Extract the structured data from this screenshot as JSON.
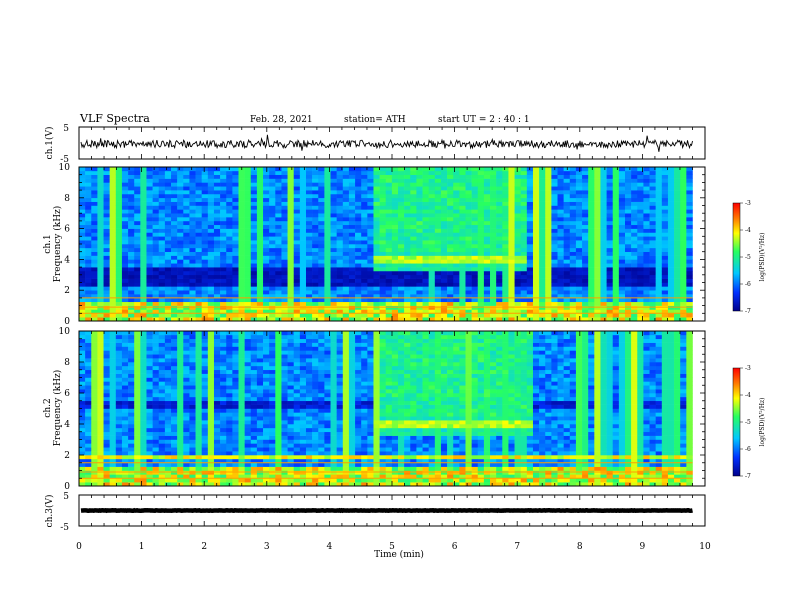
{
  "header": {
    "title": "VLF Spectra",
    "date": "Feb. 28, 2021",
    "station": "station= ATH",
    "start_ut": "start  UT  =   2  : 40 : 1"
  },
  "chart_data": {
    "type": "heatmap",
    "xlabel": "Time  (min)",
    "xlim": [
      0,
      10
    ],
    "xticks": [
      "0",
      "1",
      "2",
      "3",
      "4",
      "5",
      "6",
      "7",
      "8",
      "9",
      "10"
    ],
    "data_end_min": 9.8,
    "panels": [
      {
        "id": "ch1-waveform",
        "type": "line",
        "ylabel": "ch.1(V)",
        "ylim": [
          -5,
          5
        ],
        "yticks": [
          "5",
          "-5"
        ],
        "signal_level_v": -0.3,
        "signal_amplitude_v": 1.2
      },
      {
        "id": "ch1-spectrogram",
        "type": "heatmap",
        "ylabel_line1": "ch.1",
        "ylabel_line2": "Frequency  (kHz)",
        "ylim": [
          0,
          10
        ],
        "yticks": [
          "0",
          "2",
          "4",
          "6",
          "8",
          "10"
        ],
        "enhancement": {
          "t_start_min": 4.7,
          "t_end_min": 7.2,
          "band_center_khz": 4.0
        },
        "dark_band_khz": [
          2.3,
          3.5
        ],
        "colorbar": {
          "label": "log(PSD)(V²/Hz)",
          "min": -7,
          "max": -3,
          "ticks": [
            "-3",
            "-4",
            "-5",
            "-6",
            "-7"
          ]
        }
      },
      {
        "id": "ch2-spectrogram",
        "type": "heatmap",
        "ylabel_line1": "ch.2",
        "ylabel_line2": "Frequency  (kHz)",
        "ylim": [
          0,
          10
        ],
        "yticks": [
          "0",
          "2",
          "4",
          "6",
          "8",
          "10"
        ],
        "enhancement": {
          "t_start_min": 4.7,
          "t_end_min": 7.25,
          "band_center_khz": 4.0
        },
        "noise_band_khz": [
          1.8,
          2.1
        ],
        "colorbar": {
          "label": "log(PSD)(V²/Hz)",
          "min": -7,
          "max": -3,
          "ticks": [
            "-3",
            "-4",
            "-5",
            "-6",
            "-7"
          ]
        }
      },
      {
        "id": "ch3-waveform",
        "type": "line",
        "ylabel": "ch.3(V)",
        "ylim": [
          -5,
          5
        ],
        "yticks": [
          "5",
          "-5"
        ],
        "signal_level_v": 0.0,
        "signal_amplitude_v": 0.4
      }
    ],
    "colors": {
      "colormap": [
        "#00008b",
        "#0030ff",
        "#00c8ff",
        "#28ff60",
        "#ffff00",
        "#ff8000",
        "#ff0000"
      ]
    }
  }
}
